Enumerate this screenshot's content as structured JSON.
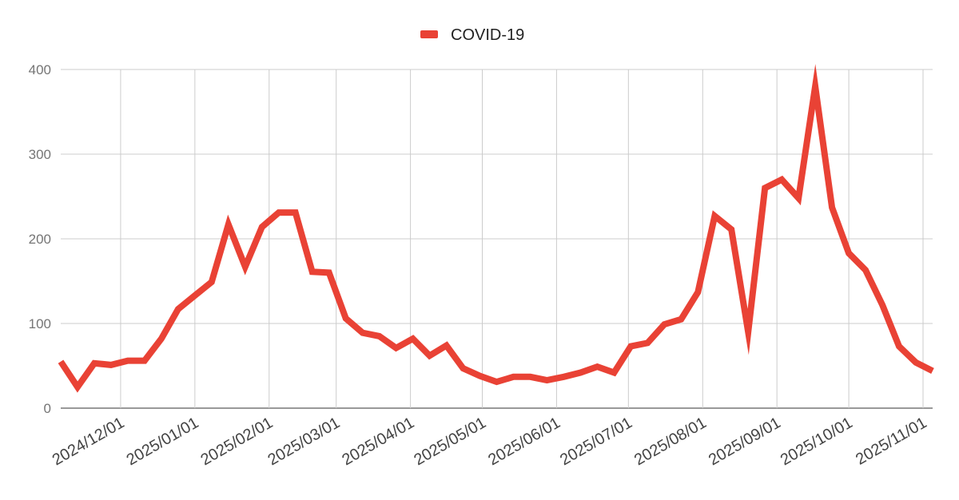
{
  "chart_data": {
    "type": "line",
    "x_type": "date",
    "xlabel": "",
    "ylabel": "",
    "ylim": [
      0,
      400
    ],
    "yticks": [
      0,
      100,
      200,
      300,
      400
    ],
    "xlim": [
      "2024-11-06",
      "2025-11-05"
    ],
    "xtick_labels": [
      "2024/12/01",
      "2025/01/01",
      "2025/02/01",
      "2025/03/01",
      "2025/04/01",
      "2025/05/01",
      "2025/06/01",
      "2025/07/01",
      "2025/08/01",
      "2025/09/01",
      "2025/10/01",
      "2025/11/01"
    ],
    "xtick_dates": [
      "2024-12-01",
      "2025-01-01",
      "2025-02-01",
      "2025-03-01",
      "2025-04-01",
      "2025-05-01",
      "2025-06-01",
      "2025-07-01",
      "2025-08-01",
      "2025-09-01",
      "2025-10-01",
      "2025-11-01"
    ],
    "grid": true,
    "legend_position": "top-center",
    "series": [
      {
        "name": "COVID-19",
        "color": "#e94235",
        "x": [
          "2024-11-06",
          "2024-11-13",
          "2024-11-20",
          "2024-11-27",
          "2024-12-04",
          "2024-12-11",
          "2024-12-18",
          "2024-12-25",
          "2025-01-01",
          "2025-01-08",
          "2025-01-15",
          "2025-01-22",
          "2025-01-29",
          "2025-02-05",
          "2025-02-12",
          "2025-02-19",
          "2025-02-26",
          "2025-03-05",
          "2025-03-12",
          "2025-03-19",
          "2025-03-26",
          "2025-04-02",
          "2025-04-09",
          "2025-04-16",
          "2025-04-23",
          "2025-04-30",
          "2025-05-07",
          "2025-05-14",
          "2025-05-21",
          "2025-05-28",
          "2025-06-04",
          "2025-06-11",
          "2025-06-18",
          "2025-06-25",
          "2025-07-02",
          "2025-07-09",
          "2025-07-16",
          "2025-07-23",
          "2025-07-30",
          "2025-08-06",
          "2025-08-13",
          "2025-08-20",
          "2025-08-27",
          "2025-09-03",
          "2025-09-10",
          "2025-09-17",
          "2025-09-24",
          "2025-10-01",
          "2025-10-08",
          "2025-10-15",
          "2025-10-22",
          "2025-10-29",
          "2025-11-05"
        ],
        "values": [
          55,
          25,
          53,
          51,
          56,
          56,
          82,
          117,
          133,
          149,
          217,
          167,
          214,
          231,
          231,
          161,
          160,
          106,
          89,
          85,
          71,
          82,
          62,
          74,
          47,
          38,
          31,
          37,
          37,
          33,
          37,
          42,
          49,
          42,
          73,
          77,
          99,
          105,
          137,
          227,
          211,
          90,
          260,
          270,
          248,
          380,
          237,
          183,
          163,
          122,
          73,
          54,
          44
        ]
      }
    ]
  }
}
